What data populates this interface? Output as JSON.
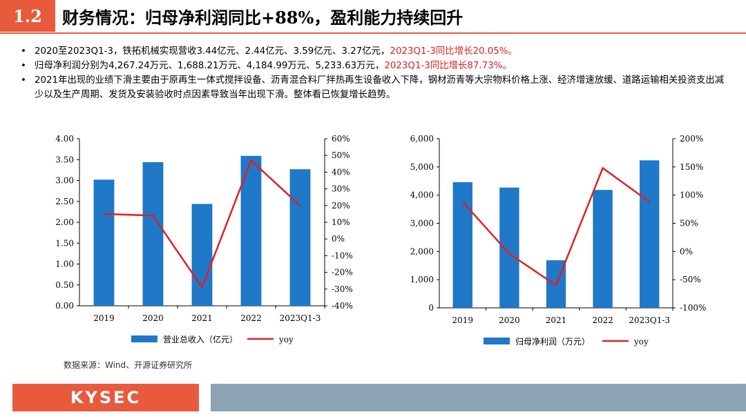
{
  "header": {
    "section_number": "1.2",
    "title": "财务情况：归母净利润同比+88%，盈利能力持续回升"
  },
  "bullets": [
    {
      "text": "2020至2023Q1-3，铁拓机械实现营收3.44亿元、2.44亿元、3.59亿元、3.27亿元，",
      "highlight": "2023Q1-3同比增长20.05%。"
    },
    {
      "text": "归母净利润分别为4,267.24万元、1,688.21万元、4,184.99万元、5,233.63万元，",
      "highlight": "2023Q1-3同比增长87.73%。"
    },
    {
      "text": "2021年出现的业绩下滑主要由于原再生一体式搅拌设备、沥青混合料厂拌热再生设备收入下降，钢材沥青等大宗物料价格上涨、经济增速放缓、道路运输相关投资支出减少以及生产周期、发货及安装验收时点因素导致当年出现下滑。整体看已恢复增长趋势。",
      "highlight": ""
    }
  ],
  "chart_data": [
    {
      "type": "bar",
      "categories": [
        "2019",
        "2020",
        "2021",
        "2022",
        "2023Q1-3"
      ],
      "series": [
        {
          "name": "营业总收入（亿元）",
          "type": "bar",
          "axis": "left",
          "values": [
            3.02,
            3.44,
            2.44,
            3.59,
            3.27
          ]
        },
        {
          "name": "yoy",
          "type": "line",
          "axis": "right",
          "values": [
            15,
            14,
            -29,
            47,
            20
          ]
        }
      ],
      "y_left": {
        "min": 0,
        "max": 4,
        "step": 0.5,
        "ticks": [
          "0.00",
          "0.50",
          "1.00",
          "1.50",
          "2.00",
          "2.50",
          "3.00",
          "3.50",
          "4.00"
        ]
      },
      "y_right": {
        "min": -40,
        "max": 60,
        "step": 10,
        "ticks": [
          "-40%",
          "-30%",
          "-20%",
          "-10%",
          "0%",
          "10%",
          "20%",
          "30%",
          "40%",
          "50%",
          "60%"
        ]
      },
      "colors": {
        "bar": "#1f78c8",
        "line": "#e02020"
      },
      "legend_position": "bottom"
    },
    {
      "type": "bar",
      "categories": [
        "2019",
        "2020",
        "2021",
        "2022",
        "2023Q1-3"
      ],
      "series": [
        {
          "name": "归母净利润（万元）",
          "type": "bar",
          "axis": "left",
          "values": [
            4460,
            4267.24,
            1688.21,
            4184.99,
            5233.63
          ]
        },
        {
          "name": "yoy",
          "type": "line",
          "axis": "right",
          "values": [
            88,
            -4,
            -60,
            148,
            88
          ]
        }
      ],
      "y_left": {
        "min": 0,
        "max": 6000,
        "step": 1000,
        "ticks": [
          "0",
          "1,000",
          "2,000",
          "3,000",
          "4,000",
          "5,000",
          "6,000"
        ]
      },
      "y_right": {
        "min": -100,
        "max": 200,
        "step": 50,
        "ticks": [
          "-100%",
          "-50%",
          "0%",
          "50%",
          "100%",
          "150%",
          "200%"
        ]
      },
      "colors": {
        "bar": "#1f78c8",
        "line": "#e02020"
      },
      "legend_position": "bottom"
    }
  ],
  "source": "数据来源：Wind、开源证券研究所",
  "footer": {
    "logo": "KYSEC"
  }
}
